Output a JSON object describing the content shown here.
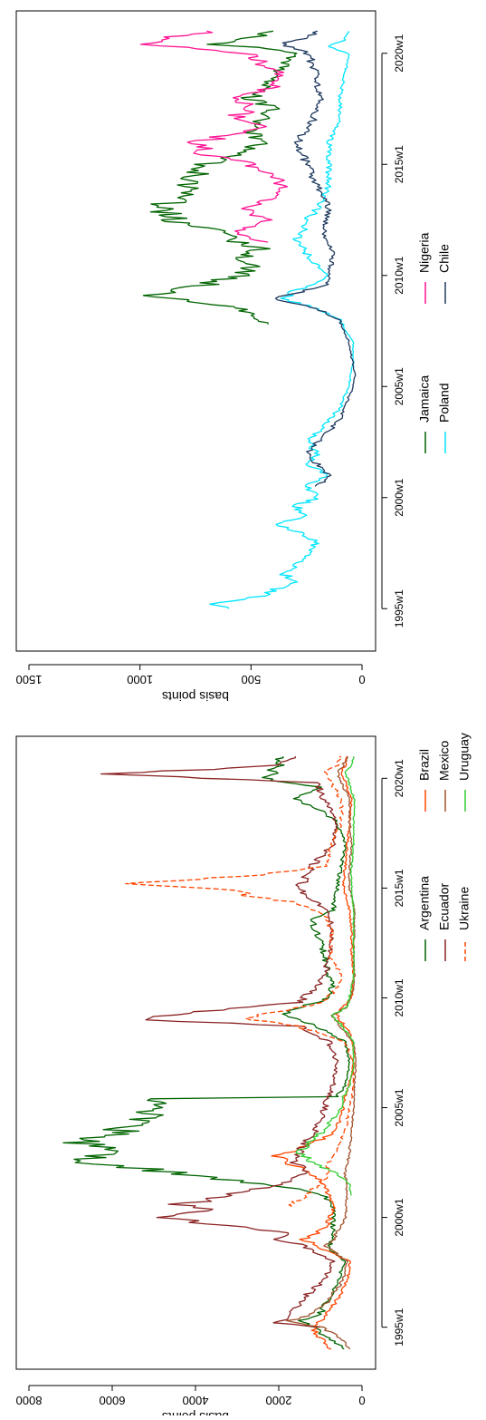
{
  "chart_data": [
    {
      "type": "line",
      "ylabel": "basis points",
      "y_ticks": [
        "0",
        "2000",
        "4000",
        "6000",
        "8000"
      ],
      "x_ticks": [
        "1995w1",
        "2000w1",
        "2005w1",
        "2010w1",
        "2015w1",
        "2020w1"
      ],
      "ylim": [
        0,
        8000
      ],
      "xlim": [
        1993.5,
        2021.5
      ],
      "grid": false,
      "legend_position": "bottom",
      "series": [
        {
          "name": "Argentina",
          "color": "#006400",
          "dash": false,
          "x": [
            1994.0,
            1994.5,
            1995.0,
            1995.3,
            1995.6,
            1996.0,
            1996.5,
            1997.0,
            1997.5,
            1998.0,
            1998.6,
            1999.0,
            1999.5,
            2000.0,
            2000.5,
            2001.0,
            2001.3,
            2001.6,
            2001.9,
            2002.2,
            2002.5,
            2002.8,
            2003.1,
            2003.4,
            2003.8,
            2004.2,
            2004.6,
            2005.0,
            2005.4,
            2005.5,
            2006.0,
            2007.0,
            2008.0,
            2008.8,
            2009.2,
            2009.6,
            2010.0,
            2010.6,
            2011.0,
            2012.0,
            2013.0,
            2013.5,
            2014.0,
            2015.0,
            2016.0,
            2017.0,
            2018.0,
            2018.7,
            2019.0,
            2019.6,
            2019.9,
            2020.3,
            2020.6,
            2021.0
          ],
          "y": [
            400,
            800,
            1200,
            1500,
            1000,
            900,
            700,
            600,
            500,
            400,
            800,
            700,
            700,
            700,
            700,
            900,
            1600,
            2800,
            3900,
            5200,
            6700,
            6300,
            6100,
            6600,
            5900,
            5600,
            5200,
            4800,
            5200,
            600,
            400,
            300,
            400,
            1200,
            1900,
            1400,
            800,
            700,
            800,
            900,
            1100,
            1200,
            700,
            600,
            500,
            400,
            600,
            1100,
            1600,
            1000,
            2300,
            2200,
            2000,
            1900
          ]
        },
        {
          "name": "Brazil",
          "color": "#ff4500",
          "dash": false,
          "x": [
            1994.0,
            1994.5,
            1995.0,
            1995.5,
            1996.0,
            1996.5,
            1997.0,
            1997.5,
            1998.0,
            1998.7,
            1999.0,
            1999.5,
            2000.0,
            2000.5,
            2001.0,
            2001.5,
            2002.0,
            2002.5,
            2002.8,
            2003.2,
            2003.8,
            2004.5,
            2005.5,
            2006.5,
            2007.5,
            2008.5,
            2008.9,
            2009.3,
            2010.0,
            2011.0,
            2012.0,
            2013.0,
            2014.0,
            2015.0,
            2016.0,
            2017.0,
            2018.0,
            2019.0,
            2020.3,
            2020.6,
            2021.0
          ],
          "y": [
            800,
            1000,
            1200,
            900,
            700,
            500,
            400,
            300,
            300,
            1100,
            1400,
            900,
            750,
            700,
            800,
            900,
            1200,
            1800,
            2000,
            1400,
            700,
            500,
            400,
            250,
            200,
            300,
            500,
            600,
            250,
            200,
            250,
            250,
            300,
            450,
            400,
            350,
            300,
            250,
            500,
            400,
            350
          ]
        },
        {
          "name": "Ecuador",
          "color": "#8b2323",
          "dash": false,
          "x": [
            1995.0,
            1995.2,
            1995.5,
            1996.0,
            1996.5,
            1997.0,
            1997.5,
            1998.0,
            1998.7,
            1999.0,
            1999.3,
            1999.7,
            2000.0,
            2000.3,
            2000.6,
            2001.0,
            2001.5,
            2002.0,
            2002.5,
            2003.0,
            2004.0,
            2005.0,
            2006.0,
            2007.0,
            2008.0,
            2008.7,
            2009.0,
            2009.3,
            2009.8,
            2010.5,
            2011.0,
            2012.0,
            2013.0,
            2014.0,
            2014.5,
            2015.0,
            2016.0,
            2017.0,
            2018.0,
            2019.0,
            2019.8,
            2020.2,
            2020.4,
            2020.6,
            2021.0
          ],
          "y": [
            1000,
            2100,
            1700,
            1500,
            1300,
            1000,
            800,
            700,
            1400,
            2000,
            1800,
            3700,
            4700,
            3800,
            4300,
            3200,
            2000,
            1300,
            1600,
            1500,
            1100,
            900,
            700,
            600,
            800,
            1500,
            5300,
            4300,
            1500,
            1100,
            900,
            800,
            700,
            800,
            1300,
            1500,
            1200,
            700,
            600,
            900,
            1100,
            6400,
            3500,
            2000,
            1600
          ]
        },
        {
          "name": "Mexico",
          "color": "#a0522d",
          "dash": false,
          "x": [
            1994.0,
            1994.5,
            1995.0,
            1995.3,
            1995.6,
            1996.0,
            1996.5,
            1997.0,
            1997.5,
            1998.0,
            1998.7,
            1999.0,
            1999.5,
            2000.0,
            2001.0,
            2002.0,
            2003.0,
            2004.0,
            2005.0,
            2006.0,
            2007.0,
            2008.0,
            2008.8,
            2009.2,
            2009.6,
            2010.5,
            2011.0,
            2012.0,
            2013.0,
            2014.0,
            2015.0,
            2016.0,
            2017.0,
            2018.0,
            2019.0,
            2020.3,
            2020.6,
            2021.0
          ],
          "y": [
            300,
            500,
            1000,
            1700,
            1200,
            900,
            700,
            500,
            400,
            350,
            900,
            700,
            550,
            400,
            350,
            400,
            300,
            250,
            200,
            180,
            150,
            200,
            600,
            700,
            350,
            200,
            180,
            200,
            180,
            180,
            300,
            300,
            250,
            300,
            300,
            600,
            450,
            350
          ]
        },
        {
          "name": "Ukraine",
          "color": "#ff4500",
          "dash": true,
          "x": [
            2000.5,
            2001.0,
            2001.5,
            2002.0,
            2002.5,
            2003.0,
            2004.0,
            2005.0,
            2006.0,
            2007.0,
            2008.0,
            2008.7,
            2009.0,
            2009.3,
            2009.8,
            2010.5,
            2011.0,
            2012.0,
            2013.0,
            2013.8,
            2014.3,
            2014.6,
            2014.9,
            2015.2,
            2015.6,
            2016.0,
            2017.0,
            2018.0,
            2019.0,
            2020.3,
            2020.6,
            2021.0
          ],
          "y": [
            1700,
            1400,
            1000,
            800,
            800,
            600,
            400,
            300,
            200,
            200,
            400,
            1500,
            2700,
            2200,
            900,
            600,
            500,
            800,
            700,
            900,
            1500,
            2500,
            3300,
            5600,
            2400,
            900,
            700,
            500,
            500,
            900,
            600,
            500
          ]
        },
        {
          "name": "Uruguay",
          "color": "#32cd32",
          "dash": false,
          "x": [
            2001.0,
            2001.5,
            2002.0,
            2002.5,
            2003.0,
            2003.5,
            2004.0,
            2004.5,
            2005.0,
            2005.5,
            2006.0,
            2007.0,
            2008.0,
            2008.8,
            2009.2,
            2009.6,
            2010.5,
            2011.0,
            2012.0,
            2013.0,
            2014.0,
            2015.0,
            2016.0,
            2017.0,
            2018.0,
            2019.0,
            2020.3,
            2020.6,
            2021.0
          ],
          "y": [
            250,
            300,
            600,
            1200,
            1500,
            1200,
            900,
            700,
            500,
            450,
            300,
            200,
            200,
            500,
            700,
            350,
            250,
            200,
            200,
            200,
            200,
            250,
            250,
            200,
            200,
            180,
            400,
            250,
            200
          ]
        }
      ]
    },
    {
      "type": "line",
      "ylabel": "basis points",
      "y_ticks": [
        "0",
        "500",
        "1000",
        "1500"
      ],
      "x_ticks": [
        "1995w1",
        "2000w1",
        "2005w1",
        "2010w1",
        "2015w1",
        "2020w1"
      ],
      "ylim": [
        0,
        1500
      ],
      "xlim": [
        1993.5,
        2021.5
      ],
      "grid": false,
      "legend_position": "bottom",
      "series": [
        {
          "name": "Jamaica",
          "color": "#006400",
          "dash": false,
          "x": [
            2007.8,
            2008.2,
            2008.6,
            2008.9,
            2009.1,
            2009.3,
            2009.6,
            2010.0,
            2010.4,
            2010.8,
            2011.2,
            2011.6,
            2012.0,
            2012.5,
            2013.0,
            2013.5,
            2014.0,
            2014.5,
            2015.0,
            2015.5,
            2016.0,
            2016.5,
            2017.0,
            2017.5,
            2018.0,
            2018.5,
            2019.0,
            2019.5,
            2020.0,
            2020.2,
            2020.4,
            2020.8,
            2021.0
          ],
          "y": [
            400,
            500,
            600,
            800,
            1000,
            850,
            700,
            550,
            500,
            550,
            450,
            600,
            650,
            850,
            900,
            850,
            800,
            750,
            700,
            550,
            450,
            500,
            450,
            400,
            500,
            450,
            400,
            350,
            300,
            400,
            700,
            450,
            400
          ]
        },
        {
          "name": "Nigeria",
          "color": "#ff1493",
          "dash": false,
          "x": [
            2011.5,
            2012.0,
            2012.5,
            2013.0,
            2013.5,
            2014.0,
            2014.5,
            2015.0,
            2015.5,
            2016.0,
            2016.3,
            2016.7,
            2017.0,
            2017.5,
            2018.0,
            2018.5,
            2019.0,
            2019.5,
            2020.0,
            2020.2,
            2020.4,
            2020.8,
            2021.0
          ],
          "y": [
            450,
            550,
            400,
            550,
            400,
            350,
            400,
            500,
            700,
            750,
            600,
            400,
            600,
            500,
            550,
            400,
            350,
            450,
            500,
            750,
            1000,
            800,
            700
          ]
        },
        {
          "name": "Poland",
          "color": "#00e5ff",
          "dash": false,
          "x": [
            1995.0,
            1995.2,
            1995.5,
            1995.8,
            1996.2,
            1996.6,
            1997.0,
            1997.5,
            1998.0,
            1998.5,
            1998.8,
            1999.2,
            1999.6,
            2000.0,
            2000.5,
            2001.0,
            2001.5,
            2002.0,
            2002.5,
            2003.0,
            2003.5,
            2004.0,
            2004.5,
            2005.0,
            2005.5,
            2006.0,
            2007.0,
            2008.0,
            2008.5,
            2008.9,
            2009.3,
            2009.7,
            2010.0,
            2010.5,
            2011.0,
            2011.5,
            2012.0,
            2012.5,
            2013.0,
            2014.0,
            2015.0,
            2016.0,
            2017.0,
            2018.0,
            2019.0,
            2020.0,
            2020.3,
            2020.6,
            2021.0
          ],
          "y": [
            550,
            750,
            500,
            400,
            300,
            350,
            300,
            250,
            200,
            300,
            400,
            250,
            300,
            200,
            250,
            150,
            250,
            200,
            250,
            200,
            150,
            100,
            80,
            60,
            50,
            40,
            40,
            100,
            200,
            350,
            300,
            200,
            150,
            200,
            250,
            300,
            250,
            250,
            200,
            150,
            150,
            150,
            100,
            100,
            80,
            60,
            150,
            80,
            60
          ]
        },
        {
          "name": "Chile",
          "color": "#1f3a5f",
          "dash": false,
          "x": [
            2000.5,
            2001.0,
            2001.5,
            2002.0,
            2002.5,
            2003.0,
            2003.5,
            2004.0,
            2004.5,
            2005.0,
            2005.5,
            2006.0,
            2006.5,
            2007.0,
            2007.5,
            2008.0,
            2008.5,
            2008.9,
            2009.2,
            2009.6,
            2010.0,
            2010.5,
            2011.0,
            2011.5,
            2012.0,
            2012.5,
            2013.0,
            2013.5,
            2014.0,
            2014.5,
            2015.0,
            2015.5,
            2016.0,
            2016.5,
            2017.0,
            2017.5,
            2018.0,
            2018.5,
            2019.0,
            2019.5,
            2020.0,
            2020.2,
            2020.4,
            2020.8,
            2021.0
          ],
          "y": [
            200,
            150,
            200,
            250,
            200,
            150,
            100,
            80,
            60,
            40,
            30,
            40,
            50,
            60,
            80,
            100,
            200,
            400,
            300,
            150,
            150,
            140,
            130,
            160,
            170,
            160,
            150,
            170,
            200,
            230,
            250,
            260,
            300,
            250,
            220,
            200,
            180,
            200,
            200,
            220,
            250,
            300,
            350,
            230,
            200
          ]
        }
      ]
    }
  ]
}
